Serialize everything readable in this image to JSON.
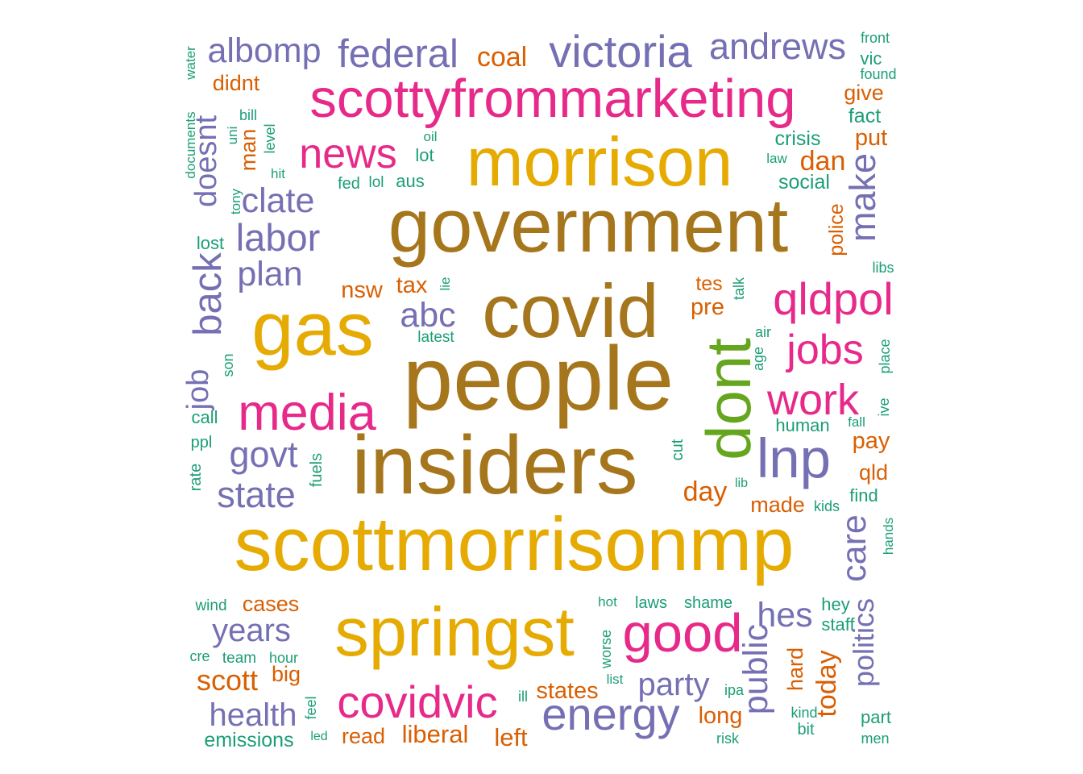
{
  "palette": {
    "teal": "#1b9e77",
    "orange": "#d95f02",
    "purple": "#7570b3",
    "pink": "#e7298a",
    "green": "#66a61e",
    "gold": "#e6ab02",
    "brown": "#a6761d"
  },
  "words": [
    {
      "text": "people",
      "color": "brown",
      "size": 1.0
    },
    {
      "text": "insiders",
      "color": "brown",
      "size": 0.92
    },
    {
      "text": "government",
      "color": "brown",
      "size": 0.84
    },
    {
      "text": "scottmorrisonmp",
      "color": "gold",
      "size": 0.84
    },
    {
      "text": "covid",
      "color": "brown",
      "size": 0.84
    },
    {
      "text": "morrison",
      "color": "gold",
      "size": 0.76
    },
    {
      "text": "gas",
      "color": "gold",
      "size": 0.84
    },
    {
      "text": "springst",
      "color": "gold",
      "size": 0.76
    },
    {
      "text": "dont",
      "color": "green",
      "size": 0.7
    },
    {
      "text": "scottyfrommarketing",
      "color": "pink",
      "size": 0.6
    },
    {
      "text": "lnp",
      "color": "purple",
      "size": 0.62
    },
    {
      "text": "good",
      "color": "pink",
      "size": 0.6
    },
    {
      "text": "media",
      "color": "pink",
      "size": 0.56
    },
    {
      "text": "covidvic",
      "color": "pink",
      "size": 0.5
    },
    {
      "text": "energy",
      "color": "purple",
      "size": 0.5
    },
    {
      "text": "qldpol",
      "color": "pink",
      "size": 0.5
    },
    {
      "text": "victoria",
      "color": "purple",
      "size": 0.5
    },
    {
      "text": "news",
      "color": "pink",
      "size": 0.46
    },
    {
      "text": "work",
      "color": "pink",
      "size": 0.48
    },
    {
      "text": "jobs",
      "color": "pink",
      "size": 0.46
    },
    {
      "text": "federal",
      "color": "purple",
      "size": 0.44
    },
    {
      "text": "labor",
      "color": "purple",
      "size": 0.42
    },
    {
      "text": "back",
      "color": "purple",
      "size": 0.44
    },
    {
      "text": "andrews",
      "color": "purple",
      "size": 0.4
    },
    {
      "text": "albomp",
      "color": "purple",
      "size": 0.38
    },
    {
      "text": "clate",
      "color": "purple",
      "size": 0.38
    },
    {
      "text": "plan",
      "color": "purple",
      "size": 0.38
    },
    {
      "text": "abc",
      "color": "purple",
      "size": 0.38
    },
    {
      "text": "govt",
      "color": "purple",
      "size": 0.4
    },
    {
      "text": "state",
      "color": "purple",
      "size": 0.4
    },
    {
      "text": "make",
      "color": "purple",
      "size": 0.4
    },
    {
      "text": "care",
      "color": "purple",
      "size": 0.38
    },
    {
      "text": "public",
      "color": "purple",
      "size": 0.38
    },
    {
      "text": "hes",
      "color": "purple",
      "size": 0.38
    },
    {
      "text": "party",
      "color": "purple",
      "size": 0.36
    },
    {
      "text": "years",
      "color": "purple",
      "size": 0.36
    },
    {
      "text": "health",
      "color": "purple",
      "size": 0.36
    },
    {
      "text": "doesnt",
      "color": "purple",
      "size": 0.34
    },
    {
      "text": "job",
      "color": "purple",
      "size": 0.34
    },
    {
      "text": "politics",
      "color": "purple",
      "size": 0.32
    },
    {
      "text": "coal",
      "color": "orange",
      "size": 0.3
    },
    {
      "text": "dan",
      "color": "orange",
      "size": 0.3
    },
    {
      "text": "scott",
      "color": "orange",
      "size": 0.32
    },
    {
      "text": "today",
      "color": "orange",
      "size": 0.3
    },
    {
      "text": "day",
      "color": "orange",
      "size": 0.3
    },
    {
      "text": "liberal",
      "color": "orange",
      "size": 0.28
    },
    {
      "text": "left",
      "color": "orange",
      "size": 0.28
    },
    {
      "text": "states",
      "color": "orange",
      "size": 0.26
    },
    {
      "text": "tax",
      "color": "orange",
      "size": 0.26
    },
    {
      "text": "nsw",
      "color": "orange",
      "size": 0.26
    },
    {
      "text": "pre",
      "color": "orange",
      "size": 0.26
    },
    {
      "text": "put",
      "color": "orange",
      "size": 0.26
    },
    {
      "text": "pay",
      "color": "orange",
      "size": 0.26
    },
    {
      "text": "long",
      "color": "orange",
      "size": 0.26
    },
    {
      "text": "hard",
      "color": "orange",
      "size": 0.24
    },
    {
      "text": "big",
      "color": "orange",
      "size": 0.24
    },
    {
      "text": "man",
      "color": "orange",
      "size": 0.24
    },
    {
      "text": "didnt",
      "color": "orange",
      "size": 0.24
    },
    {
      "text": "give",
      "color": "orange",
      "size": 0.24
    },
    {
      "text": "qld",
      "color": "orange",
      "size": 0.24
    },
    {
      "text": "cases",
      "color": "orange",
      "size": 0.24
    },
    {
      "text": "made",
      "color": "orange",
      "size": 0.24
    },
    {
      "text": "read",
      "color": "orange",
      "size": 0.24
    },
    {
      "text": "tes",
      "color": "orange",
      "size": 0.22
    },
    {
      "text": "police",
      "color": "orange",
      "size": 0.22
    },
    {
      "text": "emissions",
      "color": "teal",
      "size": 0.22
    },
    {
      "text": "social",
      "color": "teal",
      "size": 0.22
    },
    {
      "text": "crisis",
      "color": "teal",
      "size": 0.22
    },
    {
      "text": "fact",
      "color": "teal",
      "size": 0.22
    },
    {
      "text": "lot",
      "color": "teal",
      "size": 0.2
    },
    {
      "text": "lost",
      "color": "teal",
      "size": 0.2
    },
    {
      "text": "aus",
      "color": "teal",
      "size": 0.2
    },
    {
      "text": "call",
      "color": "teal",
      "size": 0.2
    },
    {
      "text": "find",
      "color": "teal",
      "size": 0.2
    },
    {
      "text": "hey",
      "color": "teal",
      "size": 0.2
    },
    {
      "text": "vic",
      "color": "teal",
      "size": 0.2
    },
    {
      "text": "part",
      "color": "teal",
      "size": 0.2
    },
    {
      "text": "staff",
      "color": "teal",
      "size": 0.2
    },
    {
      "text": "human",
      "color": "teal",
      "size": 0.2
    },
    {
      "text": "fed",
      "color": "teal",
      "size": 0.18
    },
    {
      "text": "bit",
      "color": "teal",
      "size": 0.18
    },
    {
      "text": "cut",
      "color": "teal",
      "size": 0.18
    },
    {
      "text": "shame",
      "color": "teal",
      "size": 0.18
    },
    {
      "text": "laws",
      "color": "teal",
      "size": 0.18
    },
    {
      "text": "ppl",
      "color": "teal",
      "size": 0.18
    },
    {
      "text": "fuels",
      "color": "teal",
      "size": 0.18
    },
    {
      "text": "rate",
      "color": "teal",
      "size": 0.18
    },
    {
      "text": "wind",
      "color": "teal",
      "size": 0.17
    },
    {
      "text": "team",
      "color": "teal",
      "size": 0.17
    },
    {
      "text": "latest",
      "color": "teal",
      "size": 0.17
    },
    {
      "text": "lol",
      "color": "teal",
      "size": 0.17
    },
    {
      "text": "level",
      "color": "teal",
      "size": 0.16
    },
    {
      "text": "bill",
      "color": "teal",
      "size": 0.16
    },
    {
      "text": "son",
      "color": "teal",
      "size": 0.16
    },
    {
      "text": "feel",
      "color": "teal",
      "size": 0.16
    },
    {
      "text": "worse",
      "color": "teal",
      "size": 0.16
    },
    {
      "text": "front",
      "color": "teal",
      "size": 0.16
    },
    {
      "text": "found",
      "color": "teal",
      "size": 0.16
    },
    {
      "text": "air",
      "color": "teal",
      "size": 0.16
    },
    {
      "text": "age",
      "color": "teal",
      "size": 0.16
    },
    {
      "text": "talk",
      "color": "teal",
      "size": 0.16
    },
    {
      "text": "ive",
      "color": "teal",
      "size": 0.16
    },
    {
      "text": "place",
      "color": "teal",
      "size": 0.16
    },
    {
      "text": "libs",
      "color": "teal",
      "size": 0.16
    },
    {
      "text": "kind",
      "color": "teal",
      "size": 0.16
    },
    {
      "text": "men",
      "color": "teal",
      "size": 0.16
    },
    {
      "text": "risk",
      "color": "teal",
      "size": 0.16
    },
    {
      "text": "ipa",
      "color": "teal",
      "size": 0.16
    },
    {
      "text": "kids",
      "color": "teal",
      "size": 0.16
    },
    {
      "text": "ill",
      "color": "teal",
      "size": 0.16
    },
    {
      "text": "hour",
      "color": "teal",
      "size": 0.16
    },
    {
      "text": "cre",
      "color": "teal",
      "size": 0.16
    },
    {
      "text": "hands",
      "color": "teal",
      "size": 0.15
    },
    {
      "text": "water",
      "color": "teal",
      "size": 0.15
    },
    {
      "text": "documents",
      "color": "teal",
      "size": 0.15
    },
    {
      "text": "tony",
      "color": "teal",
      "size": 0.15
    },
    {
      "text": "uni",
      "color": "teal",
      "size": 0.15
    },
    {
      "text": "hit",
      "color": "teal",
      "size": 0.15
    },
    {
      "text": "oil",
      "color": "teal",
      "size": 0.15
    },
    {
      "text": "law",
      "color": "teal",
      "size": 0.15
    },
    {
      "text": "lie",
      "color": "teal",
      "size": 0.15
    },
    {
      "text": "fall",
      "color": "teal",
      "size": 0.15
    },
    {
      "text": "hot",
      "color": "teal",
      "size": 0.15
    },
    {
      "text": "list",
      "color": "teal",
      "size": 0.15
    },
    {
      "text": "lib",
      "color": "teal",
      "size": 0.14
    },
    {
      "text": "led",
      "color": "teal",
      "size": 0.14
    }
  ]
}
